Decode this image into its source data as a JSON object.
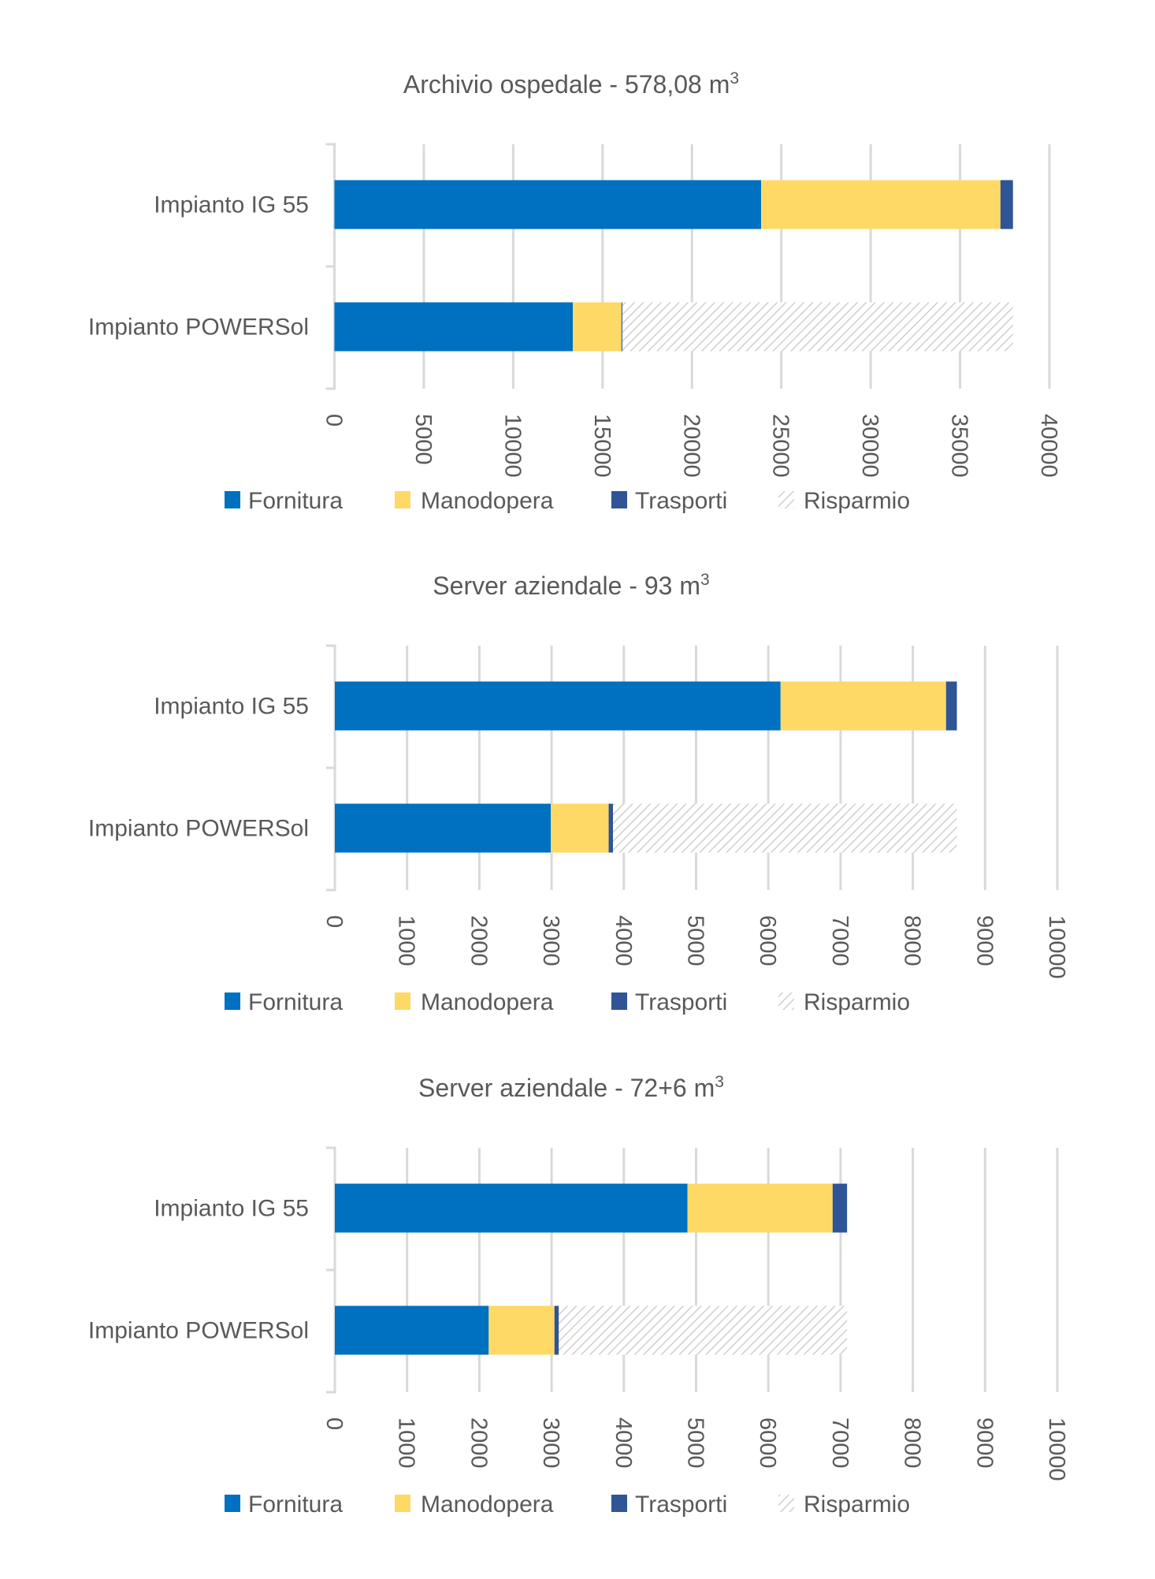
{
  "page": {
    "background": "#ffffff"
  },
  "colors": {
    "Fornitura": "#0070c0",
    "Manodopera": "#ffd966",
    "Trasporti": "#2f5597",
    "Risparmio": "#d0d0d0",
    "text": "#595959",
    "grid": "#d9d9d9"
  },
  "chart_data": [
    {
      "type": "bar",
      "orientation": "horizontal",
      "stacked": true,
      "title": "Archivio ospedale - 578,08 m",
      "title_superscript": "3",
      "categories": [
        "Impianto IG 55",
        "Impianto POWERSol"
      ],
      "series": [
        {
          "name": "Fornitura",
          "values": [
            23870,
            13340
          ]
        },
        {
          "name": "Manodopera",
          "values": [
            13390,
            2720
          ]
        },
        {
          "name": "Trasporti",
          "values": [
            700,
            50
          ]
        },
        {
          "name": "Risparmio",
          "values": [
            0,
            21850
          ],
          "pattern": "hatch"
        }
      ],
      "xlim": [
        0,
        40000
      ],
      "xticks": [
        "0",
        "5000",
        "10000",
        "15000",
        "20000",
        "25000",
        "30000",
        "35000",
        "40000"
      ],
      "xtick_values": [
        0,
        5000,
        10000,
        15000,
        20000,
        25000,
        30000,
        35000,
        40000
      ],
      "xlabel": "",
      "ylabel": "",
      "grid": true,
      "legend": {
        "position": "bottom",
        "entries": [
          "Fornitura",
          "Manodopera",
          "Trasporti",
          "Risparmio"
        ]
      }
    },
    {
      "type": "bar",
      "orientation": "horizontal",
      "stacked": true,
      "title": "Server aziendale - 93 m",
      "title_superscript": "3",
      "categories": [
        "Impianto IG 55",
        "Impianto POWERSol"
      ],
      "series": [
        {
          "name": "Fornitura",
          "values": [
            6170,
            2990
          ]
        },
        {
          "name": "Manodopera",
          "values": [
            2290,
            800
          ]
        },
        {
          "name": "Trasporti",
          "values": [
            150,
            60
          ]
        },
        {
          "name": "Risparmio",
          "values": [
            0,
            4760
          ],
          "pattern": "hatch"
        }
      ],
      "xlim": [
        0,
        10000
      ],
      "xticks": [
        "0",
        "1000",
        "2000",
        "3000",
        "4000",
        "5000",
        "6000",
        "7000",
        "8000",
        "9000",
        "10000"
      ],
      "xtick_values": [
        0,
        1000,
        2000,
        3000,
        4000,
        5000,
        6000,
        7000,
        8000,
        9000,
        10000
      ],
      "xlabel": "",
      "ylabel": "",
      "grid": true,
      "legend": {
        "position": "bottom",
        "entries": [
          "Fornitura",
          "Manodopera",
          "Trasporti",
          "Risparmio"
        ]
      }
    },
    {
      "type": "bar",
      "orientation": "horizontal",
      "stacked": true,
      "title": "Server aziendale - 72+6 m",
      "title_superscript": "3",
      "categories": [
        "Impianto IG 55",
        "Impianto POWERSol"
      ],
      "series": [
        {
          "name": "Fornitura",
          "values": [
            4880,
            2130
          ]
        },
        {
          "name": "Manodopera",
          "values": [
            2010,
            910
          ]
        },
        {
          "name": "Trasporti",
          "values": [
            200,
            60
          ]
        },
        {
          "name": "Risparmio",
          "values": [
            0,
            3990
          ],
          "pattern": "hatch"
        }
      ],
      "xlim": [
        0,
        10000
      ],
      "xticks": [
        "0",
        "1000",
        "2000",
        "3000",
        "4000",
        "5000",
        "6000",
        "7000",
        "8000",
        "9000",
        "10000"
      ],
      "xtick_values": [
        0,
        1000,
        2000,
        3000,
        4000,
        5000,
        6000,
        7000,
        8000,
        9000,
        10000
      ],
      "xlabel": "",
      "ylabel": "",
      "grid": true,
      "legend": {
        "position": "bottom",
        "entries": [
          "Fornitura",
          "Manodopera",
          "Trasporti",
          "Risparmio"
        ]
      }
    }
  ]
}
